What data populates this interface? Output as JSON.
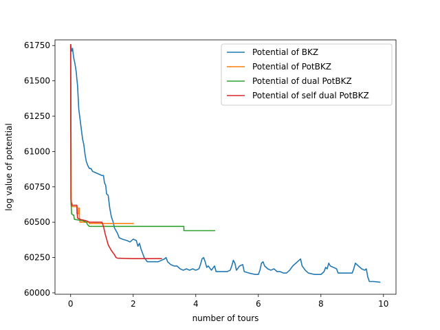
{
  "chart_data": {
    "type": "line",
    "title": "",
    "xlabel": "number of tours",
    "ylabel": "log value of potential",
    "xlim": [
      -0.5,
      10.4
    ],
    "ylim": [
      59990,
      61790
    ],
    "x_ticks": [
      0,
      2,
      4,
      6,
      8,
      10
    ],
    "x_tick_labels": [
      "0",
      "2",
      "4",
      "6",
      "8",
      "10"
    ],
    "y_ticks": [
      60000,
      60250,
      60500,
      60750,
      61000,
      61250,
      61500,
      61750
    ],
    "y_tick_labels": [
      "60000",
      "60250",
      "60500",
      "60750",
      "61000",
      "61250",
      "61500",
      "61750"
    ],
    "grid": false,
    "legend_position": "upper right",
    "series": [
      {
        "name": "Potential of BKZ",
        "color": "#1f77b4",
        "points": [
          [
            0,
            61760
          ],
          [
            0.03,
            61710
          ],
          [
            0.06,
            61730
          ],
          [
            0.1,
            61660
          ],
          [
            0.14,
            61620
          ],
          [
            0.18,
            61560
          ],
          [
            0.2,
            61510
          ],
          [
            0.22,
            61470
          ],
          [
            0.26,
            61300
          ],
          [
            0.3,
            61230
          ],
          [
            0.34,
            61160
          ],
          [
            0.38,
            61090
          ],
          [
            0.42,
            61050
          ],
          [
            0.46,
            60980
          ],
          [
            0.5,
            60930
          ],
          [
            0.55,
            60900
          ],
          [
            0.6,
            60880
          ],
          [
            0.65,
            60880
          ],
          [
            0.7,
            60860
          ],
          [
            0.8,
            60850
          ],
          [
            0.9,
            60840
          ],
          [
            1.0,
            60830
          ],
          [
            1.05,
            60830
          ],
          [
            1.08,
            60780
          ],
          [
            1.12,
            60760
          ],
          [
            1.15,
            60700
          ],
          [
            1.2,
            60690
          ],
          [
            1.25,
            60600
          ],
          [
            1.3,
            60540
          ],
          [
            1.36,
            60500
          ],
          [
            1.4,
            60460
          ],
          [
            1.45,
            60440
          ],
          [
            1.5,
            60420
          ],
          [
            1.55,
            60390
          ],
          [
            1.65,
            60380
          ],
          [
            1.8,
            60370
          ],
          [
            1.9,
            60360
          ],
          [
            2.0,
            60380
          ],
          [
            2.1,
            60370
          ],
          [
            2.15,
            60330
          ],
          [
            2.2,
            60350
          ],
          [
            2.25,
            60310
          ],
          [
            2.3,
            60280
          ],
          [
            2.35,
            60250
          ],
          [
            2.45,
            60220
          ],
          [
            2.6,
            60220
          ],
          [
            2.8,
            60220
          ],
          [
            2.9,
            60230
          ],
          [
            3.0,
            60240
          ],
          [
            3.05,
            60250
          ],
          [
            3.1,
            60220
          ],
          [
            3.2,
            60200
          ],
          [
            3.3,
            60190
          ],
          [
            3.4,
            60190
          ],
          [
            3.5,
            60170
          ],
          [
            3.6,
            60160
          ],
          [
            3.7,
            60170
          ],
          [
            3.8,
            60160
          ],
          [
            3.9,
            60170
          ],
          [
            4.0,
            60160
          ],
          [
            4.1,
            60170
          ],
          [
            4.15,
            60200
          ],
          [
            4.2,
            60240
          ],
          [
            4.25,
            60250
          ],
          [
            4.3,
            60220
          ],
          [
            4.35,
            60180
          ],
          [
            4.4,
            60190
          ],
          [
            4.5,
            60160
          ],
          [
            4.6,
            60190
          ],
          [
            4.65,
            60150
          ],
          [
            4.8,
            60150
          ],
          [
            5.0,
            60150
          ],
          [
            5.1,
            60160
          ],
          [
            5.15,
            60190
          ],
          [
            5.2,
            60230
          ],
          [
            5.25,
            60210
          ],
          [
            5.3,
            60160
          ],
          [
            5.4,
            60190
          ],
          [
            5.5,
            60200
          ],
          [
            5.55,
            60150
          ],
          [
            5.7,
            60140
          ],
          [
            5.9,
            60130
          ],
          [
            6.0,
            60130
          ],
          [
            6.05,
            60160
          ],
          [
            6.1,
            60210
          ],
          [
            6.15,
            60220
          ],
          [
            6.2,
            60190
          ],
          [
            6.3,
            60170
          ],
          [
            6.4,
            60160
          ],
          [
            6.5,
            60170
          ],
          [
            6.6,
            60150
          ],
          [
            6.7,
            60150
          ],
          [
            6.8,
            60140
          ],
          [
            6.9,
            60140
          ],
          [
            7.0,
            60160
          ],
          [
            7.1,
            60190
          ],
          [
            7.2,
            60210
          ],
          [
            7.3,
            60230
          ],
          [
            7.35,
            60240
          ],
          [
            7.4,
            60190
          ],
          [
            7.5,
            60160
          ],
          [
            7.6,
            60140
          ],
          [
            7.8,
            60130
          ],
          [
            8.0,
            60130
          ],
          [
            8.1,
            60150
          ],
          [
            8.15,
            60180
          ],
          [
            8.2,
            60170
          ],
          [
            8.25,
            60210
          ],
          [
            8.3,
            60190
          ],
          [
            8.4,
            60180
          ],
          [
            8.5,
            60170
          ],
          [
            8.55,
            60140
          ],
          [
            8.7,
            60140
          ],
          [
            9.0,
            60140
          ],
          [
            9.05,
            60170
          ],
          [
            9.1,
            60210
          ],
          [
            9.2,
            60190
          ],
          [
            9.3,
            60170
          ],
          [
            9.4,
            60160
          ],
          [
            9.45,
            60170
          ],
          [
            9.5,
            60110
          ],
          [
            9.55,
            60080
          ],
          [
            9.7,
            60080
          ],
          [
            9.9,
            60075
          ]
        ]
      },
      {
        "name": "Potential of PotBKZ",
        "color": "#ff7f0e",
        "points": [
          [
            0,
            61760
          ],
          [
            0.02,
            60640
          ],
          [
            0.05,
            60630
          ],
          [
            0.05,
            60610
          ],
          [
            0.2,
            60610
          ],
          [
            0.2,
            60560
          ],
          [
            0.26,
            60560
          ],
          [
            0.26,
            60600
          ],
          [
            0.28,
            60600
          ],
          [
            0.28,
            60530
          ],
          [
            0.3,
            60500
          ],
          [
            0.6,
            60500
          ],
          [
            0.6,
            60490
          ],
          [
            2.02,
            60490
          ]
        ]
      },
      {
        "name": "Potential of dual PotBKZ",
        "color": "#2ca02c",
        "points": [
          [
            0,
            61760
          ],
          [
            0.01,
            60650
          ],
          [
            0.03,
            60560
          ],
          [
            0.08,
            60550
          ],
          [
            0.1,
            60550
          ],
          [
            0.12,
            60520
          ],
          [
            0.4,
            60510
          ],
          [
            0.5,
            60500
          ],
          [
            0.55,
            60480
          ],
          [
            0.6,
            60470
          ],
          [
            3.62,
            60470
          ],
          [
            3.62,
            60440
          ],
          [
            4.62,
            60440
          ]
        ]
      },
      {
        "name": "Potential of self dual PotBKZ",
        "color": "#d62728",
        "points": [
          [
            0,
            61760
          ],
          [
            0.01,
            60660
          ],
          [
            0.03,
            60620
          ],
          [
            0.2,
            60620
          ],
          [
            0.22,
            60530
          ],
          [
            0.3,
            60520
          ],
          [
            0.5,
            60510
          ],
          [
            0.6,
            60500
          ],
          [
            1.0,
            60500
          ],
          [
            1.05,
            60470
          ],
          [
            1.1,
            60420
          ],
          [
            1.15,
            60380
          ],
          [
            1.2,
            60340
          ],
          [
            1.3,
            60300
          ],
          [
            1.4,
            60270
          ],
          [
            1.45,
            60250
          ],
          [
            1.5,
            60245
          ],
          [
            2.0,
            60242
          ],
          [
            2.92,
            60242
          ]
        ]
      }
    ]
  }
}
